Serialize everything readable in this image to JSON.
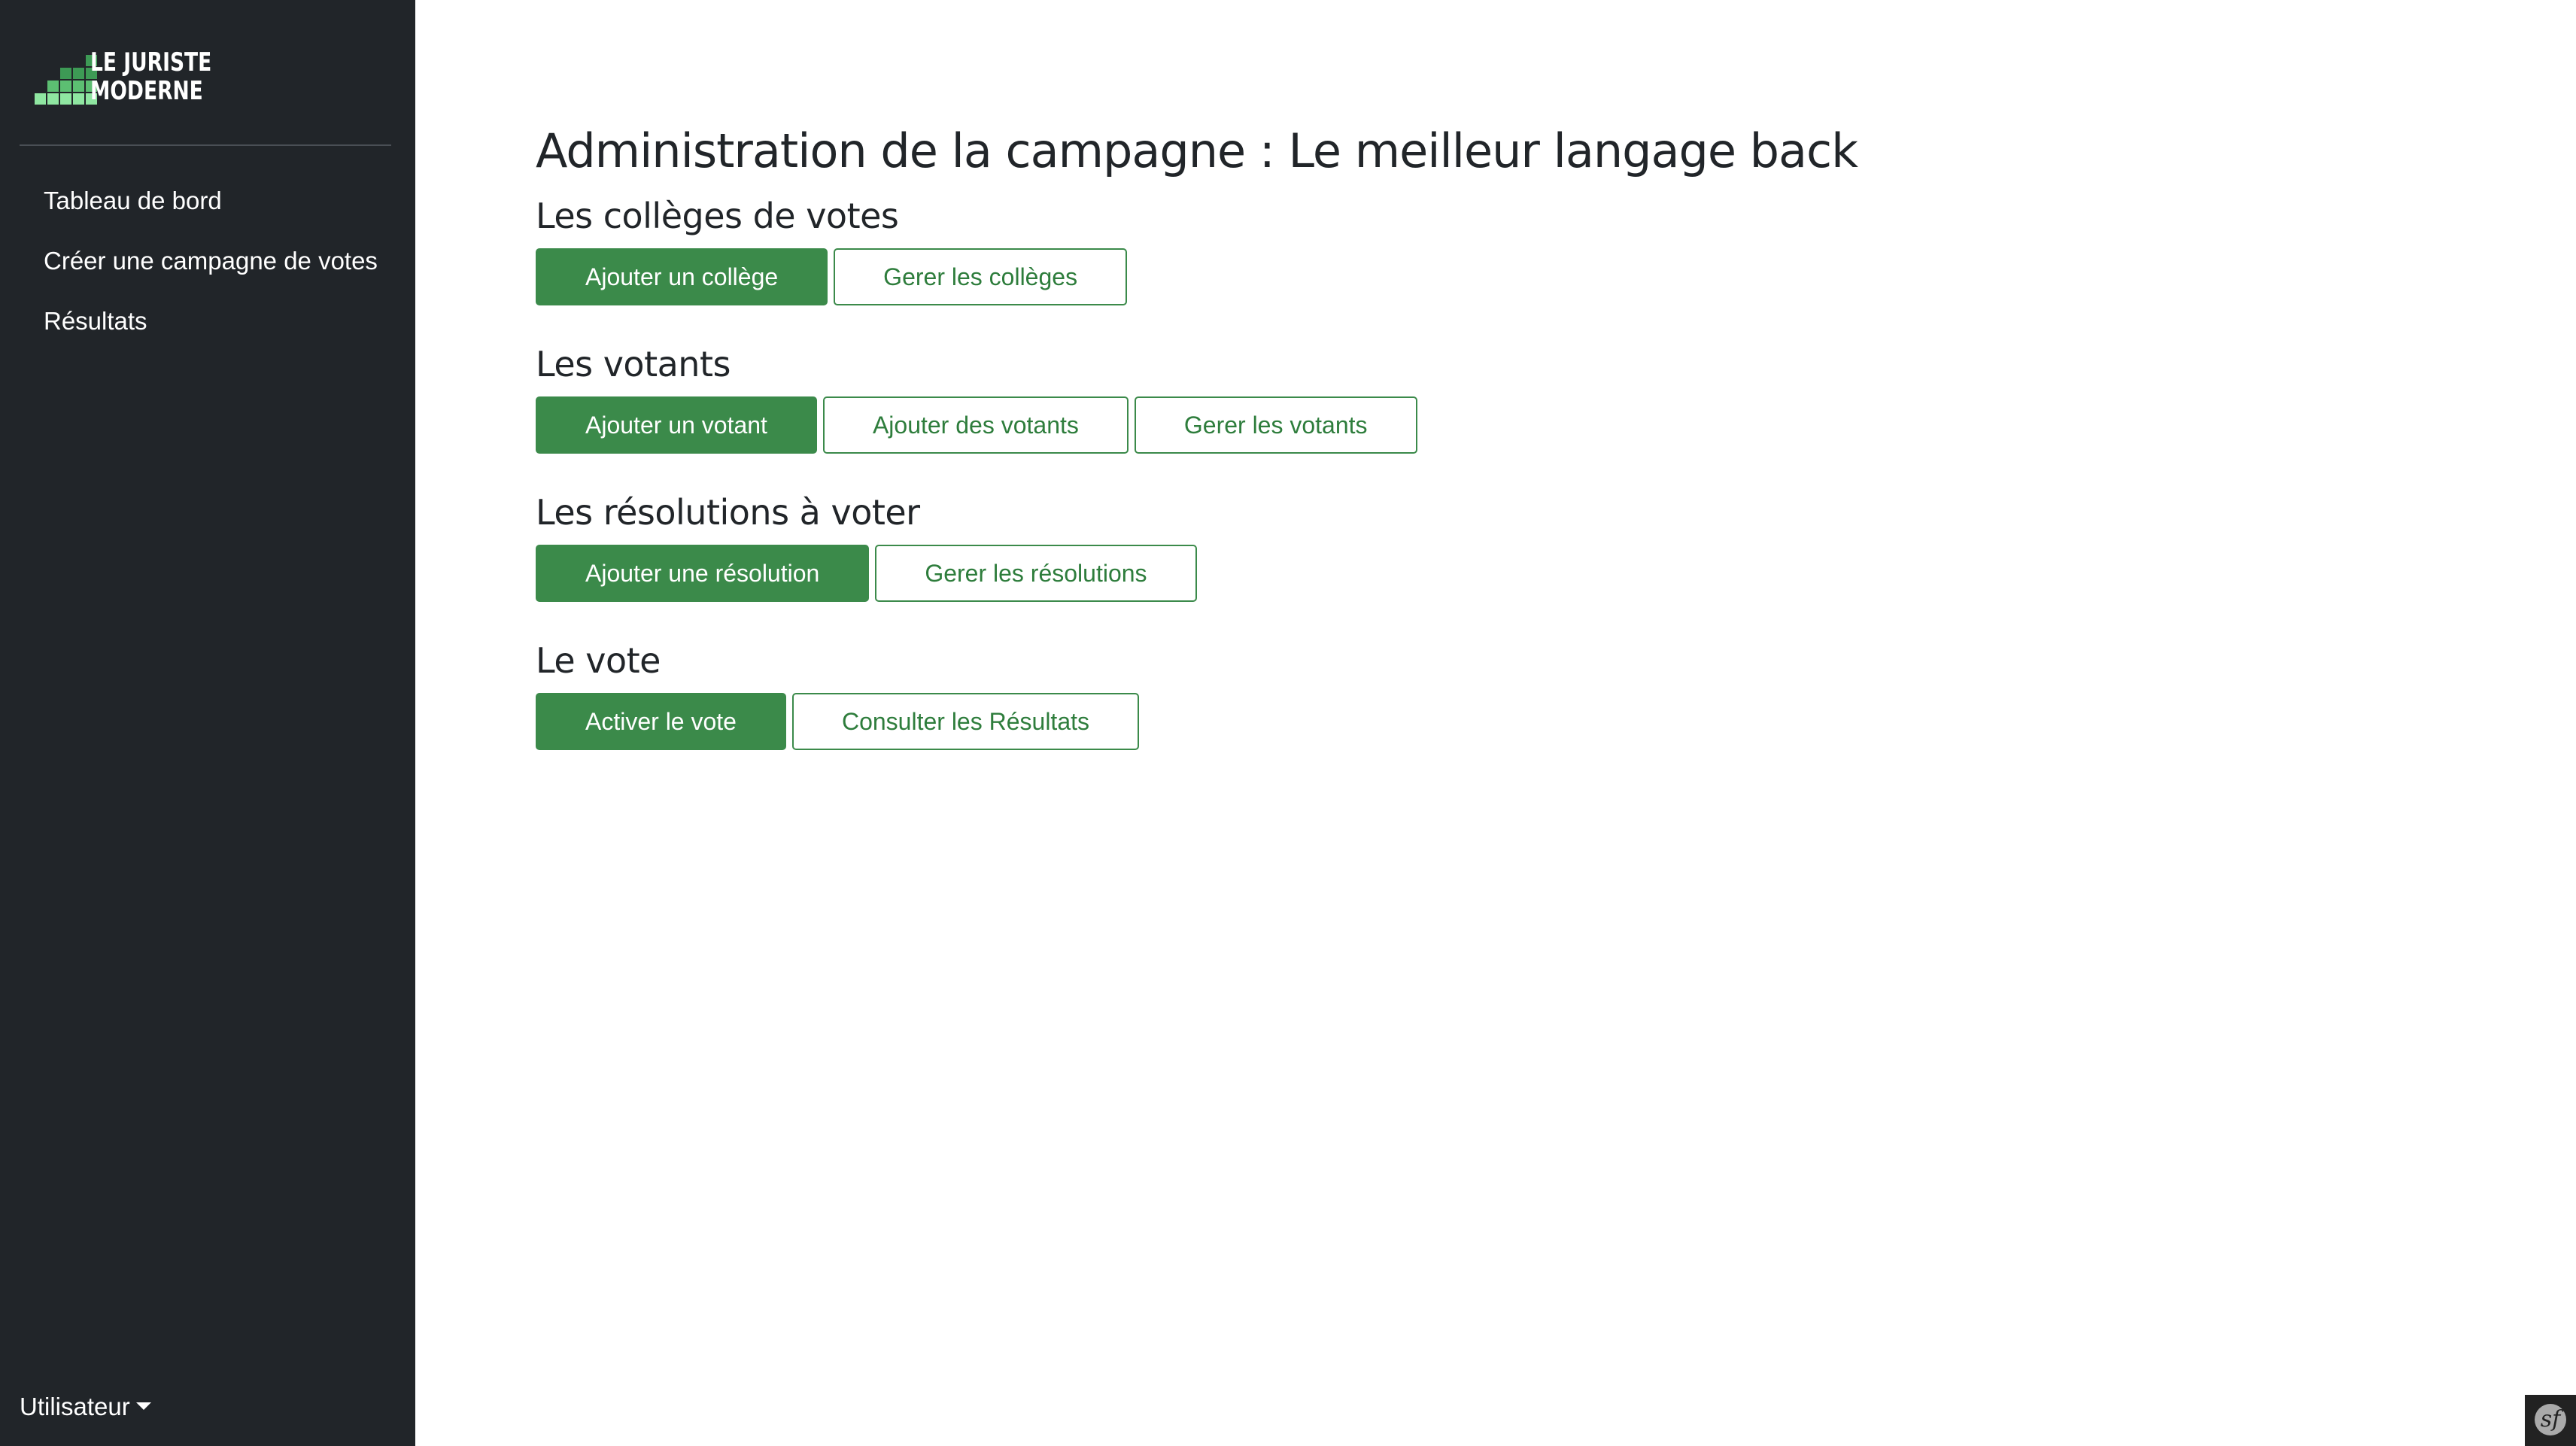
{
  "brand": {
    "line1": "LE JURISTE",
    "line2": "MODERNE",
    "colors": {
      "light": "#8fe6a1",
      "mid": "#5cbf72",
      "dark": "#3d9a55"
    }
  },
  "sidebar": {
    "items": [
      {
        "label": "Tableau de bord"
      },
      {
        "label": "Créer une campagne de votes"
      },
      {
        "label": "Résultats"
      }
    ],
    "user_menu": {
      "label": "Utilisateur"
    }
  },
  "main": {
    "title": "Administration de la campagne : Le meilleur langage back",
    "sections": [
      {
        "title": "Les collèges de votes",
        "buttons": [
          {
            "label": "Ajouter un collège",
            "style": "primary"
          },
          {
            "label": "Gerer les collèges",
            "style": "outline"
          }
        ]
      },
      {
        "title": "Les votants",
        "buttons": [
          {
            "label": "Ajouter un votant",
            "style": "primary"
          },
          {
            "label": "Ajouter des votants",
            "style": "outline"
          },
          {
            "label": "Gerer les votants",
            "style": "outline"
          }
        ]
      },
      {
        "title": "Les résolutions à voter",
        "buttons": [
          {
            "label": "Ajouter une résolution",
            "style": "primary"
          },
          {
            "label": "Gerer les résolutions",
            "style": "outline"
          }
        ]
      },
      {
        "title": "Le vote",
        "buttons": [
          {
            "label": "Activer le vote",
            "style": "primary"
          },
          {
            "label": "Consulter les Résultats",
            "style": "outline"
          }
        ]
      }
    ]
  },
  "theme": {
    "accent": "#3b8a4a",
    "sidebar_bg": "#212529"
  },
  "debug_toolbar": {
    "icon": "symfony-icon",
    "glyph": "sf"
  }
}
